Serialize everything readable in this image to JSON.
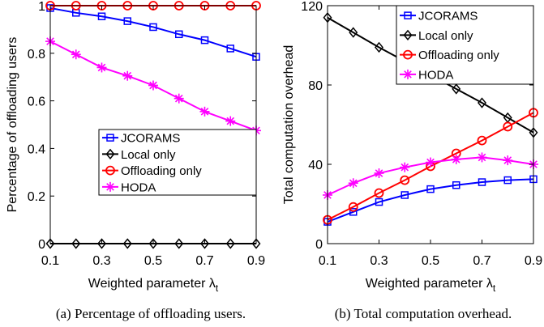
{
  "chart_data": [
    {
      "type": "line",
      "caption": "(a) Percentage of offloading users.",
      "xlabel": "Weighted parameter λ",
      "xlabel_subscript": "t",
      "ylabel": "Percentage of offloading users",
      "xlim": [
        0.1,
        0.9
      ],
      "ylim": [
        0,
        1
      ],
      "xticks": [
        "0.1",
        "0.3",
        "0.5",
        "0.7",
        "0.9"
      ],
      "yticks": [
        "0",
        "0.2",
        "0.4",
        "0.6",
        "0.8",
        "1"
      ],
      "legend_position": "lower-right",
      "x": [
        0.1,
        0.2,
        0.3,
        0.4,
        0.5,
        0.6,
        0.7,
        0.8,
        0.9
      ],
      "series": [
        {
          "name": "JCORAMS",
          "color": "#0000ff",
          "marker": "square",
          "values": [
            0.99,
            0.97,
            0.955,
            0.935,
            0.91,
            0.88,
            0.855,
            0.82,
            0.785
          ]
        },
        {
          "name": "Local only",
          "color": "#000000",
          "marker": "diamond",
          "values": [
            0,
            0,
            0,
            0,
            0,
            0,
            0,
            0,
            0
          ]
        },
        {
          "name": "Offloading only",
          "color": "#ff0000",
          "marker": "circle",
          "values": [
            1,
            1,
            1,
            1,
            1,
            1,
            1,
            1,
            1
          ]
        },
        {
          "name": "HODA",
          "color": "#ff00ff",
          "marker": "asterisk",
          "values": [
            0.85,
            0.795,
            0.74,
            0.705,
            0.665,
            0.61,
            0.555,
            0.515,
            0.475
          ]
        }
      ]
    },
    {
      "type": "line",
      "caption": "(b) Total computation overhead.",
      "xlabel": "Weighted parameter λ",
      "xlabel_subscript": "t",
      "ylabel": "Total computation overhead",
      "xlim": [
        0.1,
        0.9
      ],
      "ylim": [
        0,
        120
      ],
      "xticks": [
        "0.1",
        "0.3",
        "0.5",
        "0.7",
        "0.9"
      ],
      "yticks": [
        "0",
        "40",
        "80",
        "120"
      ],
      "legend_position": "top-right",
      "x": [
        0.1,
        0.2,
        0.3,
        0.4,
        0.5,
        0.6,
        0.7,
        0.8,
        0.9
      ],
      "series": [
        {
          "name": "JCORAMS",
          "color": "#0000ff",
          "marker": "square",
          "values": [
            11,
            16,
            21,
            24.5,
            27.5,
            29.5,
            31,
            32,
            32.5
          ]
        },
        {
          "name": "Local only",
          "color": "#000000",
          "marker": "diamond",
          "values": [
            114,
            106.5,
            99,
            92,
            85,
            78,
            71,
            63.5,
            56
          ]
        },
        {
          "name": "Offloading only",
          "color": "#ff0000",
          "marker": "circle",
          "values": [
            12,
            18.5,
            25.5,
            32,
            39,
            45.5,
            52,
            59,
            66
          ]
        },
        {
          "name": "HODA",
          "color": "#ff00ff",
          "marker": "asterisk",
          "values": [
            24.5,
            30.5,
            35.5,
            38.5,
            41,
            42.5,
            43.5,
            42,
            40
          ]
        }
      ]
    }
  ]
}
